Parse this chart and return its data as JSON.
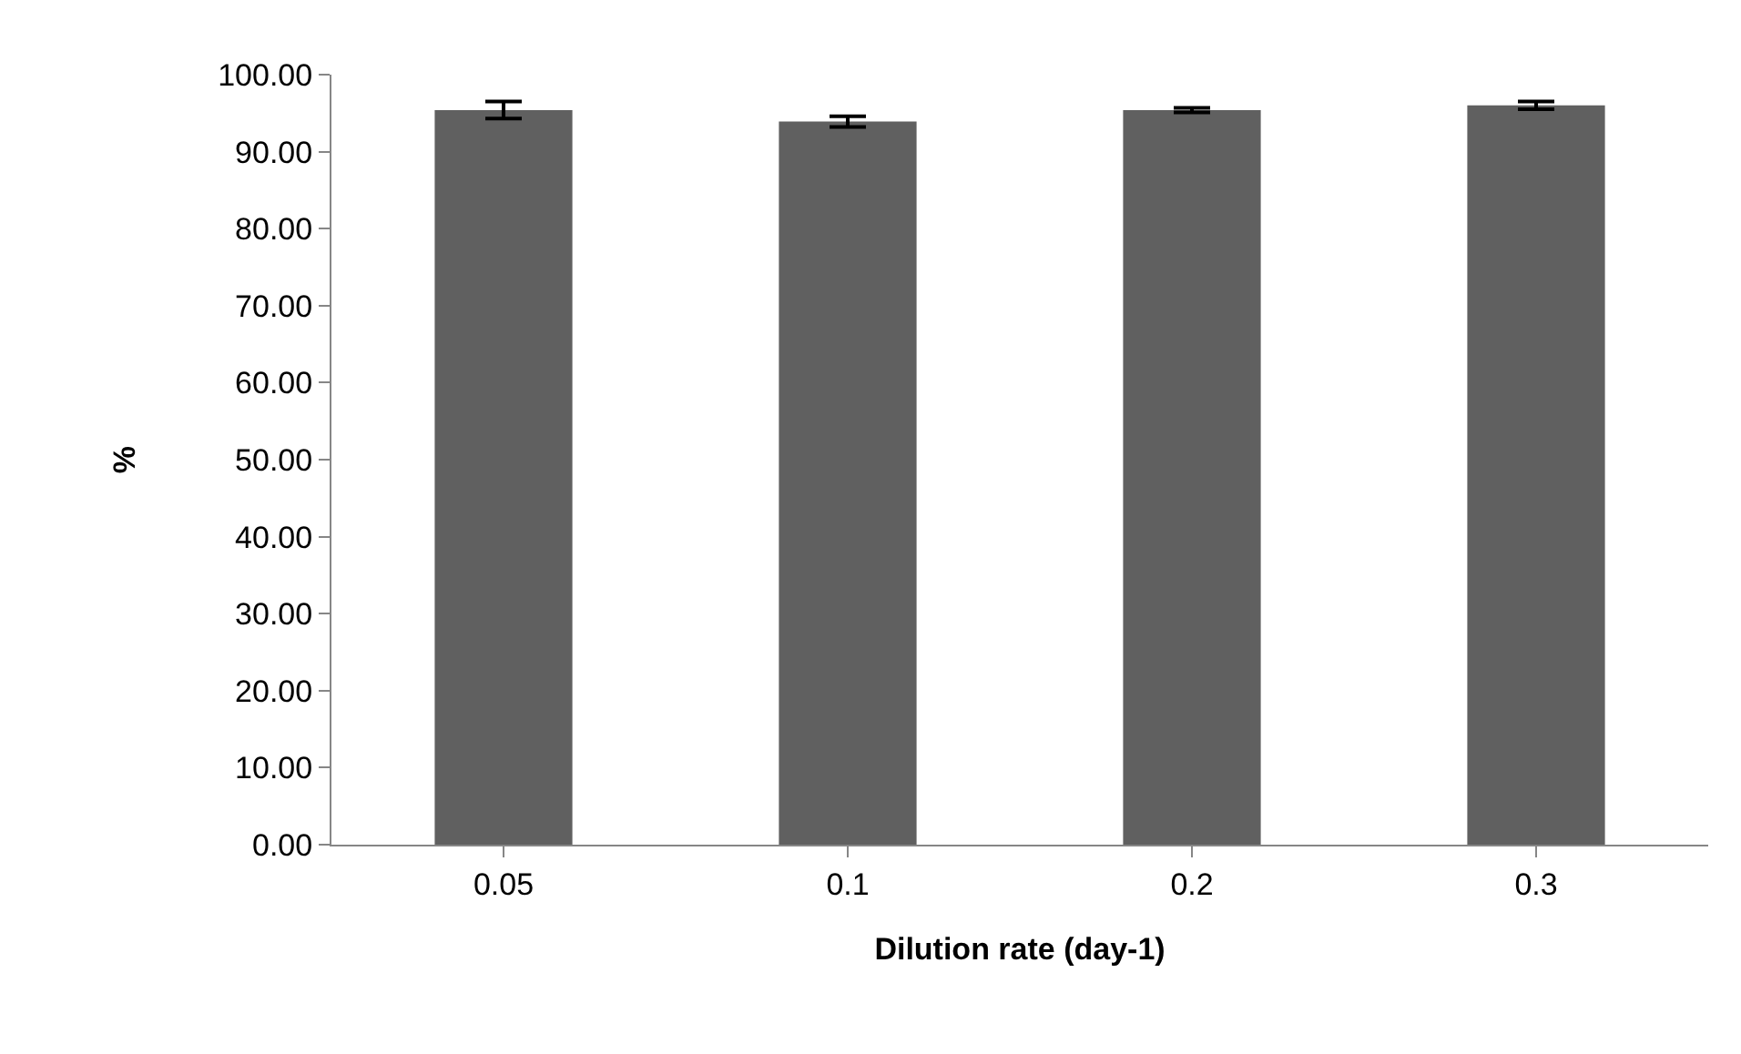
{
  "chart_data": {
    "type": "bar",
    "xlabel": "Dilution rate (day-1)",
    "ylabel": "%",
    "categories": [
      "0.05",
      "0.1",
      "0.2",
      "0.3"
    ],
    "values": [
      95.4,
      93.9,
      95.4,
      96.0
    ],
    "errors": [
      1.1,
      0.7,
      0.3,
      0.5
    ],
    "color": "#606060",
    "ylim": [
      0,
      100
    ],
    "yticks": [
      {
        "value": 0,
        "label": "0.00"
      },
      {
        "value": 10,
        "label": "10.00"
      },
      {
        "value": 20,
        "label": "20.00"
      },
      {
        "value": 30,
        "label": "30.00"
      },
      {
        "value": 40,
        "label": "40.00"
      },
      {
        "value": 50,
        "label": "50.00"
      },
      {
        "value": 60,
        "label": "60.00"
      },
      {
        "value": 70,
        "label": "70.00"
      },
      {
        "value": 80,
        "label": "80.00"
      },
      {
        "value": 90,
        "label": "90.00"
      },
      {
        "value": 100,
        "label": "100.00"
      }
    ],
    "grid": false
  }
}
